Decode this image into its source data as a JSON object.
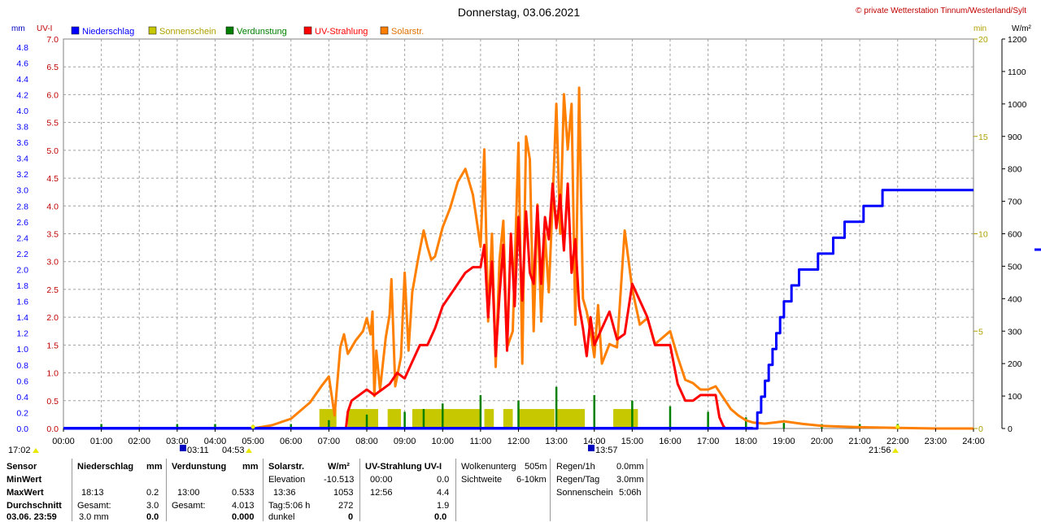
{
  "header": {
    "title": "Donnerstag, 03.06.2021",
    "copyright": "© private Wetterstation Tinnum/Westerland/Sylt",
    "left_unit_mm": "mm",
    "left_unit_uv": "UV-I",
    "right_unit_min": "min",
    "right_unit_wm2": "W/m²"
  },
  "legend": [
    {
      "label": "Niederschlag",
      "color": "#0000ff"
    },
    {
      "label": "Sonnenschein",
      "color": "#c8c800"
    },
    {
      "label": "Verdunstung",
      "color": "#008000"
    },
    {
      "label": "UV-Strahlung",
      "color": "#ff0000"
    },
    {
      "label": "Solarstr.",
      "color": "#ff8000"
    }
  ],
  "chart_data": {
    "type": "line",
    "title": "Donnerstag, 03.06.2021",
    "x_ticks": [
      "00:00",
      "01:00",
      "02:00",
      "03:00",
      "04:00",
      "05:00",
      "06:00",
      "07:00",
      "08:00",
      "09:00",
      "10:00",
      "11:00",
      "12:00",
      "13:00",
      "14:00",
      "15:00",
      "16:00",
      "17:00",
      "18:00",
      "19:00",
      "20:00",
      "21:00",
      "22:00",
      "23:00",
      "24:00"
    ],
    "xlim": [
      0,
      24
    ],
    "axes": {
      "mm": {
        "ylim": [
          0,
          4.9
        ],
        "ticks": [
          "0.0",
          "0.2",
          "0.4",
          "0.6",
          "0.8",
          "1.0",
          "1.2",
          "1.4",
          "1.6",
          "1.8",
          "2.0",
          "2.2",
          "2.4",
          "2.6",
          "2.8",
          "3.0",
          "3.2",
          "3.4",
          "3.6",
          "3.8",
          "4.0",
          "4.2",
          "4.4",
          "4.6",
          "4.8"
        ],
        "color": "#0000ff"
      },
      "uv": {
        "ylim": [
          0,
          7.0
        ],
        "ticks": [
          "0.0",
          "0.5",
          "1.0",
          "1.5",
          "2.0",
          "2.5",
          "3.0",
          "3.5",
          "4.0",
          "4.5",
          "5.0",
          "5.5",
          "6.0",
          "6.5",
          "7.0"
        ],
        "color": "#c00000"
      },
      "min": {
        "ylim": [
          0,
          20
        ],
        "ticks": [
          "0",
          "5",
          "10",
          "15",
          "20"
        ],
        "color": "#c8c800"
      },
      "wm2": {
        "ylim": [
          0,
          1200
        ],
        "ticks": [
          "0",
          "100",
          "200",
          "300",
          "400",
          "500",
          "600",
          "700",
          "800",
          "900",
          "1000",
          "1100",
          "1200"
        ],
        "color": "#000000"
      }
    },
    "grid": true,
    "series": [
      {
        "name": "Niederschlag",
        "axis": "mm",
        "color": "#0000ff",
        "step": true,
        "x": [
          0,
          18.18,
          18.3,
          18.4,
          18.5,
          18.6,
          18.7,
          18.8,
          18.9,
          19.0,
          19.2,
          19.4,
          19.7,
          19.9,
          20.3,
          20.6,
          21.1,
          21.6,
          24.0
        ],
        "y": [
          0,
          0.0,
          0.2,
          0.4,
          0.6,
          0.8,
          1.0,
          1.2,
          1.4,
          1.6,
          1.8,
          2.0,
          2.0,
          2.2,
          2.4,
          2.6,
          2.8,
          3.0,
          3.0
        ]
      },
      {
        "name": "Solarstr.",
        "axis": "wm2",
        "color": "#ff8000",
        "x": [
          0,
          5.0,
          5.5,
          6.0,
          6.5,
          6.8,
          7.0,
          7.15,
          7.3,
          7.4,
          7.5,
          7.7,
          7.9,
          8.0,
          8.1,
          8.15,
          8.2,
          8.25,
          8.35,
          8.5,
          8.6,
          8.65,
          8.75,
          8.9,
          9.0,
          9.1,
          9.2,
          9.35,
          9.5,
          9.6,
          9.7,
          9.8,
          10.0,
          10.2,
          10.4,
          10.6,
          10.8,
          11.0,
          11.1,
          11.2,
          11.3,
          11.4,
          11.5,
          11.6,
          11.7,
          11.85,
          12.0,
          12.1,
          12.2,
          12.3,
          12.4,
          12.5,
          12.6,
          12.7,
          12.8,
          12.9,
          13.0,
          13.1,
          13.2,
          13.3,
          13.4,
          13.5,
          13.6,
          13.7,
          13.8,
          13.9,
          14.0,
          14.1,
          14.2,
          14.4,
          14.6,
          14.8,
          15.0,
          15.2,
          15.4,
          15.6,
          15.8,
          16.0,
          16.2,
          16.4,
          16.6,
          16.8,
          17.0,
          17.2,
          17.4,
          17.6,
          17.8,
          18.0,
          18.2,
          18.5,
          19.0,
          19.5,
          20.0,
          20.5,
          21.0,
          22.0,
          23.0,
          24.0
        ],
        "y": [
          0,
          0,
          10,
          30,
          80,
          130,
          160,
          40,
          250,
          290,
          230,
          270,
          300,
          340,
          290,
          360,
          100,
          240,
          120,
          280,
          350,
          460,
          130,
          220,
          480,
          240,
          420,
          520,
          610,
          560,
          520,
          530,
          620,
          680,
          760,
          800,
          720,
          560,
          860,
          330,
          600,
          190,
          520,
          640,
          250,
          300,
          880,
          200,
          900,
          830,
          300,
          690,
          330,
          600,
          420,
          700,
          1000,
          600,
          1030,
          860,
          1000,
          320,
          1050,
          400,
          360,
          300,
          220,
          380,
          200,
          260,
          250,
          610,
          430,
          320,
          340,
          260,
          280,
          300,
          220,
          150,
          140,
          120,
          120,
          130,
          95,
          60,
          40,
          25,
          18,
          15,
          22,
          14,
          8,
          6,
          4,
          2,
          0,
          0
        ]
      },
      {
        "name": "UV-Strahlung",
        "axis": "uv",
        "color": "#ff0000",
        "x": [
          7.45,
          7.5,
          7.6,
          7.8,
          8.0,
          8.2,
          8.4,
          8.6,
          8.8,
          9.0,
          9.2,
          9.4,
          9.6,
          9.8,
          10.0,
          10.2,
          10.4,
          10.6,
          10.8,
          11.0,
          11.1,
          11.2,
          11.3,
          11.4,
          11.5,
          11.6,
          11.7,
          11.8,
          11.9,
          12.0,
          12.1,
          12.2,
          12.3,
          12.4,
          12.5,
          12.6,
          12.7,
          12.8,
          12.9,
          13.0,
          13.1,
          13.2,
          13.3,
          13.4,
          13.5,
          13.6,
          13.7,
          13.8,
          13.9,
          14.0,
          14.2,
          14.4,
          14.6,
          14.8,
          15.0,
          15.2,
          15.4,
          15.6,
          15.8,
          16.0,
          16.2,
          16.4,
          16.6,
          16.8,
          17.0,
          17.2,
          17.3,
          17.4,
          17.45
        ],
        "y": [
          0,
          0.3,
          0.5,
          0.6,
          0.7,
          0.6,
          0.7,
          0.8,
          1.0,
          0.9,
          1.2,
          1.5,
          1.5,
          1.8,
          2.2,
          2.4,
          2.6,
          2.8,
          2.9,
          2.9,
          3.3,
          2.0,
          3.0,
          1.3,
          2.4,
          3.3,
          1.4,
          3.5,
          2.2,
          3.8,
          2.3,
          3.9,
          2.8,
          2.6,
          4.0,
          2.6,
          3.8,
          3.4,
          4.4,
          3.6,
          4.2,
          3.2,
          4.4,
          2.8,
          3.4,
          2.2,
          1.8,
          1.3,
          2.0,
          1.5,
          1.8,
          2.1,
          1.6,
          1.7,
          2.6,
          2.3,
          2.0,
          1.5,
          1.5,
          1.5,
          0.8,
          0.5,
          0.5,
          0.6,
          0.6,
          0.6,
          0.2,
          0.05,
          0
        ]
      },
      {
        "name": "Sonnenschein",
        "axis": "min",
        "color": "#c8c800",
        "type": "bar",
        "intervals": [
          [
            6.75,
            7.2
          ],
          [
            7.5,
            8.3
          ],
          [
            8.55,
            8.9
          ],
          [
            9.2,
            11.0
          ],
          [
            11.1,
            11.35
          ],
          [
            11.6,
            11.85
          ],
          [
            12.0,
            12.95
          ],
          [
            13.0,
            13.75
          ],
          [
            14.5,
            15.15
          ]
        ],
        "y": 1.0
      },
      {
        "name": "Verdunstung",
        "axis": "uv",
        "color": "#008000",
        "type": "spikes",
        "x": [
          1.0,
          3.0,
          4.0,
          6.0,
          7.0,
          8.0,
          9.0,
          9.5,
          10.0,
          11.0,
          12.0,
          13.0,
          14.0,
          15.0,
          16.0,
          17.0,
          18.0,
          19.0,
          20.0,
          21.0,
          22.0
        ],
        "y": [
          0.08,
          0.08,
          0.08,
          0.08,
          0.15,
          0.25,
          0.3,
          0.35,
          0.45,
          0.6,
          0.5,
          0.75,
          0.6,
          0.5,
          0.4,
          0.3,
          0.2,
          0.1,
          0.08,
          0.08,
          0.08
        ]
      }
    ],
    "markers": {
      "left_corner_time": "17:02",
      "sunrise_time": "04:53",
      "uv_max_marker_time": "13:57",
      "sunset_time": "21:56",
      "marker_0311": "03:11"
    }
  },
  "stats": {
    "rowlabels": [
      "Sensor",
      "MinWert",
      "MaxWert",
      "Durchschnitt",
      "03.06. 23:59"
    ],
    "niederschlag": {
      "header": "Niederschlag",
      "unit": "mm",
      "max_time": "18:13",
      "max_val": "0.2",
      "gesamt_label": "Gesamt:",
      "gesamt_val": "3.0",
      "last_val": "3.0 mm",
      "last_extra": "0.0"
    },
    "verdunstung": {
      "header": "Verdunstung",
      "unit": "mm",
      "max_time": "13:00",
      "max_val": "0.533",
      "gesamt_label": "Gesamt:",
      "gesamt_val": "4.013",
      "last_val": "0.000"
    },
    "solar": {
      "header": "Solarstr.",
      "unit": "W/m²",
      "elev_label": "Elevation",
      "elev_val": "-10.513",
      "max_time": "13:36",
      "max_val": "1053",
      "tag_label": "Tag:5:06 h",
      "tag_val": "272",
      "dunkel_label": "dunkel",
      "dunkel_val": "0"
    },
    "uv": {
      "header": "UV-Strahlung UV-I",
      "min_time": "00:00",
      "min_val": "0.0",
      "max_time": "12:56",
      "max_val": "4.4",
      "avg_val": "1.9",
      "last_val": "0.0"
    },
    "cloud": {
      "label1": "Wolkenunterg",
      "val1": "505m",
      "label2": "Sichtweite",
      "val2": "6-10km"
    },
    "rain": {
      "label1": "Regen/1h",
      "val1": "0.0mm",
      "label2": "Regen/Tag",
      "val2": "3.0mm",
      "label3": "Sonnenschein",
      "val3": "5:06h"
    }
  }
}
